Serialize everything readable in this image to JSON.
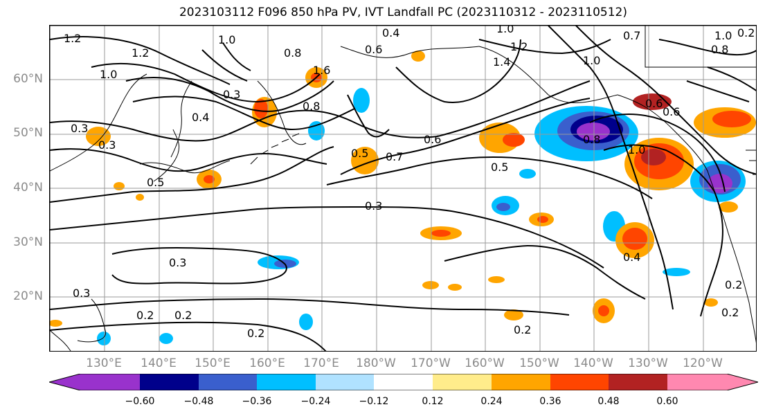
{
  "title": "2023103112 F096 850 hPa PV, IVT Landfall PC (2023110312 - 2023110512)",
  "lat_labels": [
    "60°N",
    "50°N",
    "40°N",
    "30°N",
    "20°N"
  ],
  "lon_labels": [
    "130°E",
    "140°E",
    "150°E",
    "160°E",
    "170°E",
    "180°W",
    "170°W",
    "160°W",
    "150°W",
    "140°W",
    "130°W",
    "120°W"
  ],
  "contour_labels": [
    "1.2",
    "1.0",
    "0.8",
    "0.4",
    "0.6",
    "1.6",
    "1.0",
    "1.2",
    "1.4",
    "1.0",
    "0.7",
    "1.0",
    "0.2",
    "0.8",
    "1.2",
    "1.0",
    "0.4",
    "0.3",
    "0.8",
    "0.6",
    "0.5",
    "0.7",
    "0.6",
    "0.5",
    "0.8",
    "1.0",
    "0.6",
    "0.3",
    "0.3",
    "0.3",
    "0.5",
    "0.3",
    "0.4",
    "0.2",
    "0.2",
    "0.2",
    "0.2",
    "0.2",
    "0.2",
    "0.3"
  ],
  "colorbar": {
    "ticks": [
      "−0.60",
      "−0.48",
      "−0.36",
      "−0.24",
      "−0.12",
      "0.12",
      "0.24",
      "0.36",
      "0.48",
      "0.60"
    ],
    "colors": [
      "#9932cc",
      "#00008b",
      "#3a5fcd",
      "#00bfff",
      "#b0e2ff",
      "#ffffff",
      "#ffec8b",
      "#ffa500",
      "#ff4500",
      "#b22222",
      "#ff88b0"
    ]
  }
}
